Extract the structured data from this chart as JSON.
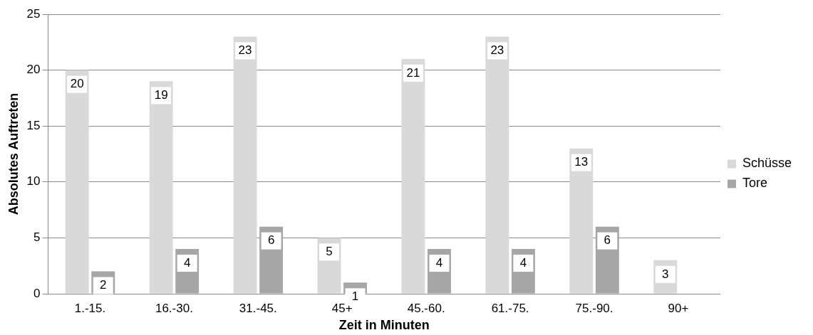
{
  "chart_data": {
    "type": "bar",
    "xlabel": "Zeit in Minuten",
    "ylabel": "Absolutes Auftreten",
    "categories": [
      "1.-15.",
      "16.-30.",
      "31.-45.",
      "45+",
      "45.-60.",
      "61.-75.",
      "75.-90.",
      "90+"
    ],
    "series": [
      {
        "name": "Schüsse",
        "color": "#d9d9d9",
        "values": [
          20,
          19,
          23,
          5,
          21,
          23,
          13,
          3
        ],
        "value_labels": [
          "20",
          "19",
          "23",
          "5",
          "21",
          "23",
          "13",
          "3"
        ]
      },
      {
        "name": "Tore",
        "color": "#a6a6a6",
        "values": [
          2,
          4,
          6,
          1,
          4,
          4,
          6,
          0
        ],
        "value_labels": [
          "2",
          "4",
          "6",
          "1",
          "4",
          "4",
          "6",
          null
        ]
      }
    ],
    "ylim": [
      0,
      25
    ],
    "yticks": [
      0,
      5,
      10,
      15,
      20,
      25
    ],
    "grid": "y",
    "legend": "right"
  }
}
